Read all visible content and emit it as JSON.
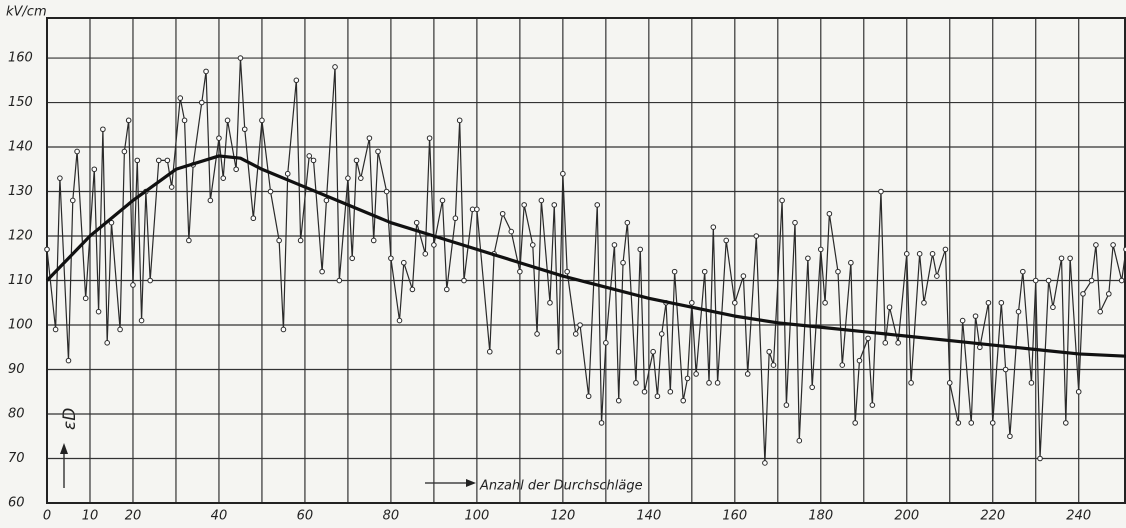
{
  "chart_data": {
    "type": "line",
    "y_unit_label": "kV/cm",
    "y_label": "εD",
    "annotation": "Anzahl der Durchschläge",
    "xlim": [
      0,
      251
    ],
    "ylim": [
      60,
      169
    ],
    "grid": true,
    "xticks": [
      0,
      10,
      20,
      {
        "value": 30,
        "label": null
      },
      40,
      {
        "value": 50,
        "label": null
      },
      60,
      {
        "value": 70,
        "label": null
      },
      80,
      {
        "value": 90,
        "label": null
      },
      100,
      {
        "value": 110,
        "label": null
      },
      120,
      {
        "value": 130,
        "label": null
      },
      140,
      {
        "value": 150,
        "label": null
      },
      160,
      {
        "value": 170,
        "label": null
      },
      180,
      {
        "value": 190,
        "label": null
      },
      200,
      {
        "value": 210,
        "label": null
      },
      220,
      {
        "value": 230,
        "label": null
      },
      240
    ],
    "yticks": [
      60,
      70,
      80,
      90,
      100,
      110,
      120,
      130,
      140,
      150,
      160
    ],
    "series": [
      {
        "color": "#2a2a2a",
        "markers": true,
        "x": [
          0,
          2,
          3,
          5,
          6,
          7,
          9,
          11,
          12,
          13,
          14,
          15,
          17,
          18,
          19,
          20,
          21,
          22,
          23,
          24,
          26,
          28,
          29,
          31,
          32,
          33,
          34,
          36,
          37,
          38,
          40,
          41,
          42,
          44,
          45,
          46,
          48,
          50,
          52,
          54,
          55,
          56,
          58,
          59,
          61,
          62,
          64,
          65,
          67,
          68,
          70,
          71,
          72,
          73,
          75,
          76,
          77,
          79,
          80,
          82,
          83,
          85,
          86,
          88,
          89,
          90,
          92,
          93,
          95,
          96,
          97,
          99,
          100,
          103,
          104,
          106,
          108,
          110,
          111,
          113,
          114,
          115,
          117,
          118,
          119,
          120,
          121,
          123,
          124,
          126,
          128,
          129,
          130,
          132,
          133,
          134,
          135,
          137,
          138,
          139,
          141,
          142,
          143,
          144,
          145,
          146,
          148,
          149,
          150,
          151,
          153,
          154,
          155,
          156,
          158,
          160,
          162,
          163,
          165,
          167,
          168,
          169,
          171,
          172,
          174,
          175,
          177,
          178,
          180,
          181,
          182,
          184,
          185,
          187,
          188,
          189,
          191,
          192,
          194,
          195,
          196,
          198,
          200,
          201,
          203,
          204,
          206,
          207,
          209,
          210,
          212,
          213,
          215,
          216,
          217,
          219,
          220,
          222,
          223,
          224,
          226,
          227,
          229,
          230,
          231,
          233,
          234,
          236,
          237,
          238,
          240,
          241,
          243,
          244,
          245,
          247,
          248,
          250,
          251
        ],
        "values": [
          117,
          99,
          133,
          92,
          128,
          139,
          106,
          135,
          103,
          144,
          96,
          123,
          99,
          139,
          146,
          109,
          137,
          101,
          130,
          110,
          137,
          137,
          131,
          151,
          146,
          119,
          136,
          150,
          157,
          128,
          142,
          133,
          146,
          135,
          160,
          144,
          124,
          146,
          130,
          119,
          99,
          134,
          155,
          119,
          138,
          137,
          112,
          128,
          158,
          110,
          133,
          115,
          137,
          133,
          142,
          119,
          139,
          130,
          115,
          101,
          114,
          108,
          123,
          116,
          142,
          118,
          128,
          108,
          124,
          146,
          110,
          126,
          126,
          94,
          116,
          125,
          121,
          112,
          127,
          118,
          98,
          128,
          105,
          127,
          94,
          134,
          112,
          98,
          100,
          84,
          127,
          78,
          96,
          118,
          83,
          114,
          123,
          87,
          117,
          85,
          94,
          84,
          98,
          105,
          85,
          112,
          83,
          88,
          105,
          89,
          112,
          87,
          122,
          87,
          119,
          105,
          111,
          89,
          120,
          69,
          94,
          91,
          128,
          82,
          123,
          74,
          115,
          86,
          117,
          105,
          125,
          112,
          91,
          114,
          78,
          92,
          97,
          82,
          130,
          96,
          104,
          96,
          116,
          87,
          116,
          105,
          116,
          111,
          117,
          87,
          78,
          101,
          78,
          102,
          95,
          105,
          78,
          105,
          90,
          75,
          103,
          112,
          87,
          110,
          70,
          110,
          104,
          115,
          78,
          115,
          85,
          107,
          110,
          118,
          103,
          107,
          118,
          110,
          117
        ]
      },
      {
        "color": "#111111",
        "markers": false,
        "x": [
          0,
          10,
          20,
          30,
          40,
          45,
          50,
          60,
          70,
          80,
          90,
          100,
          110,
          120,
          130,
          140,
          150,
          160,
          170,
          180,
          190,
          200,
          210,
          220,
          230,
          240,
          251
        ],
        "values": [
          110,
          120,
          128,
          135,
          138,
          137.5,
          135,
          131,
          127,
          123,
          120,
          117,
          114,
          111,
          108.5,
          106,
          104,
          102,
          100.5,
          99.5,
          98.5,
          97.5,
          96.5,
          95.5,
          94.5,
          93.5,
          93
        ]
      }
    ]
  }
}
